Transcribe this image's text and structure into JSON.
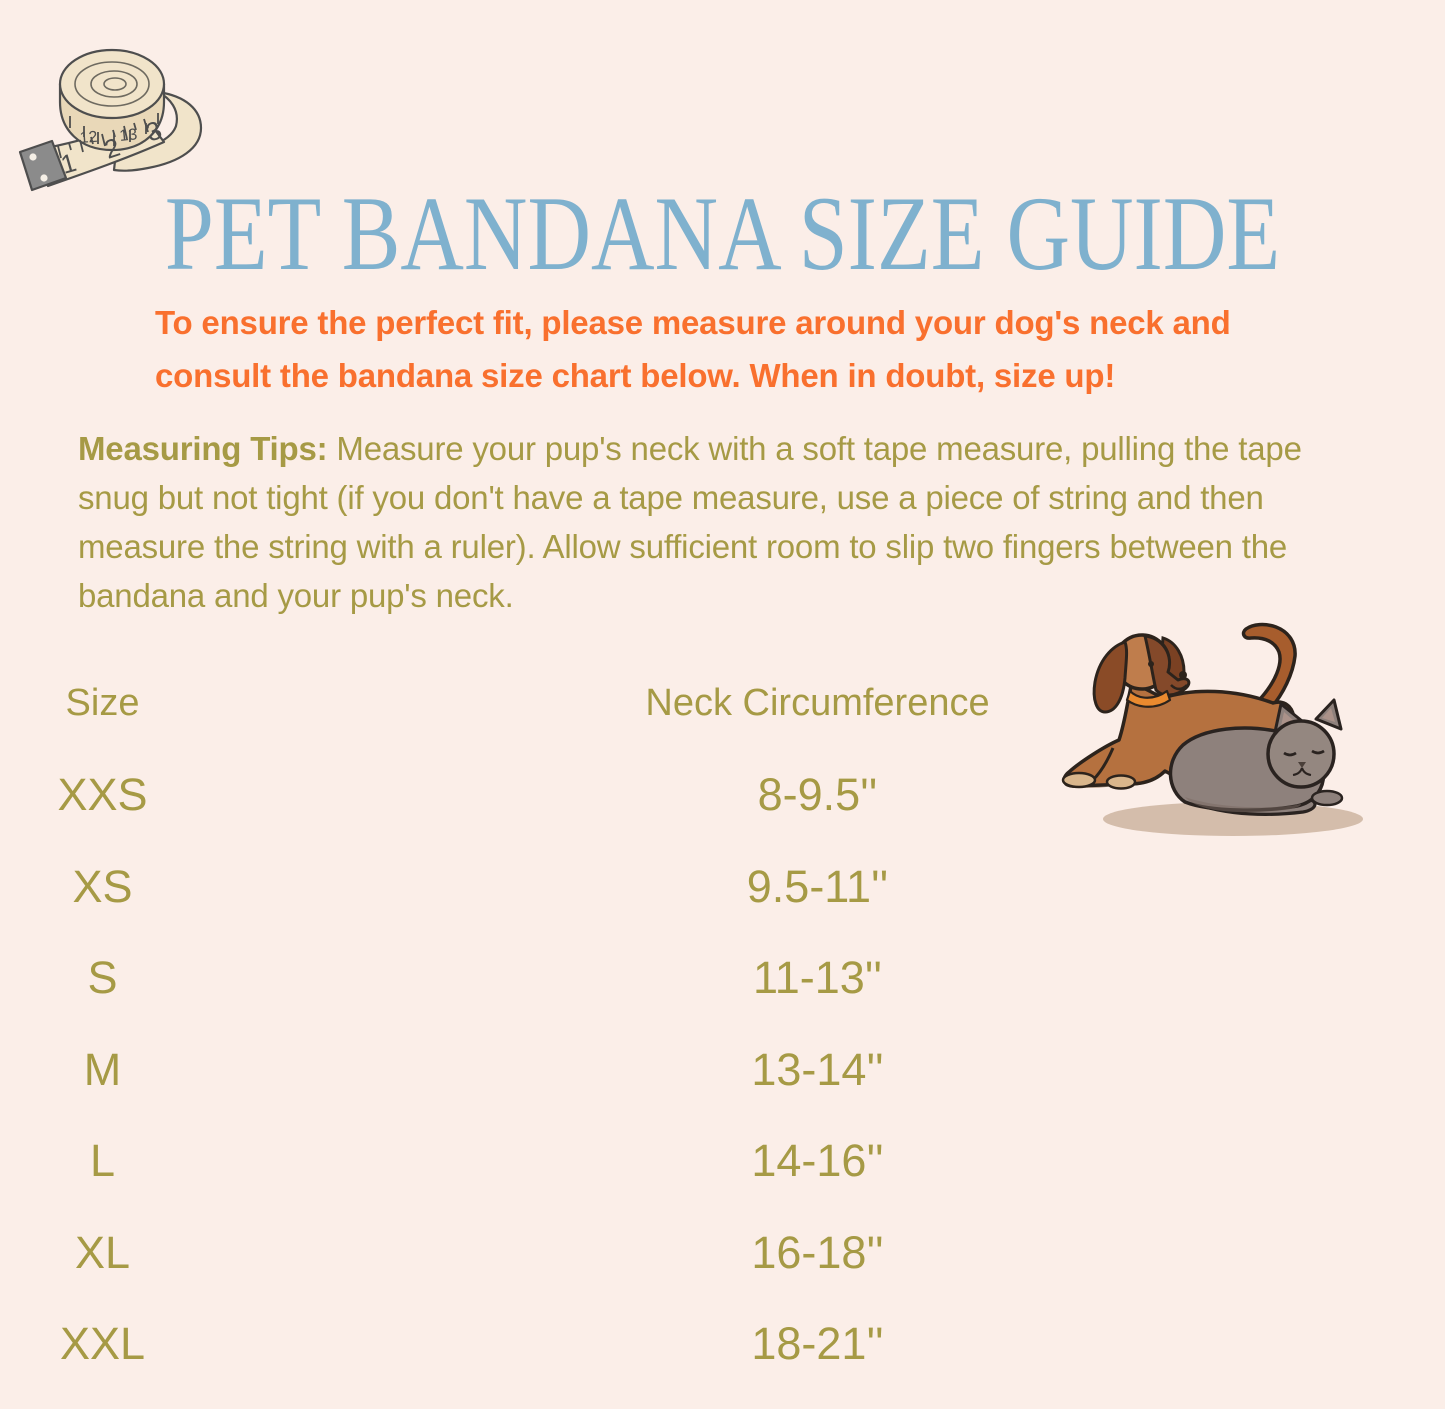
{
  "page": {
    "background_color": "#fbeee8"
  },
  "header": {
    "title": "PET BANDANA SIZE GUIDE",
    "title_color": "#7fb1ce"
  },
  "intro": {
    "line1": "To ensure the perfect fit, please measure around your dog's neck and",
    "line2": "consult the bandana size chart below. When in doubt, size up!",
    "color": "#f9702e"
  },
  "tips": {
    "label": "Measuring Tips:",
    "text": " Measure your pup's neck with a soft tape measure, pulling the tape snug but not tight (if you don't have a tape measure, use a piece of string and then measure the string with a ruler). Allow sufficient room to slip two fingers between the bandana and your pup's neck.",
    "color": "#a69a45"
  },
  "chart_data": {
    "type": "table",
    "title": "Pet Bandana Size Guide",
    "columns": [
      "Size",
      "Neck Circumference"
    ],
    "rows": [
      [
        "XXS",
        "8-9.5''"
      ],
      [
        "XS",
        "9.5-11''"
      ],
      [
        "S",
        "11-13''"
      ],
      [
        "M",
        "13-14''"
      ],
      [
        "L",
        "14-16''"
      ],
      [
        "XL",
        "16-18''"
      ],
      [
        "XXL",
        "18-21''"
      ]
    ]
  },
  "illustrations": {
    "tape_measure": {
      "numbers_on_tape": [
        "1",
        "2",
        "3"
      ],
      "numbers_on_coil": [
        "12",
        "13"
      ]
    },
    "pets": "watercolor dog and cat"
  }
}
